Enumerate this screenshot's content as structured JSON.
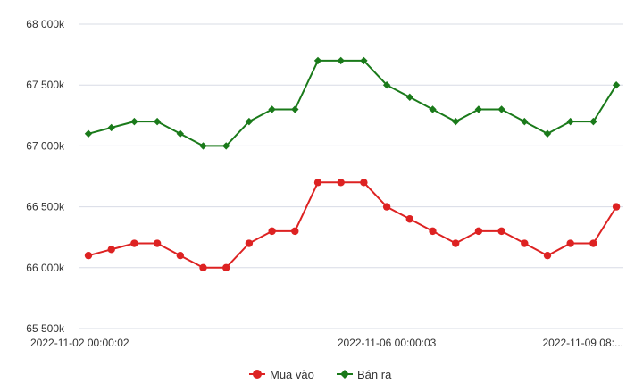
{
  "chart_data": {
    "type": "line",
    "ylim": [
      65500,
      68000
    ],
    "y_ticks": [
      {
        "value": 68000,
        "label": "68 000k"
      },
      {
        "value": 67500,
        "label": "67 500k"
      },
      {
        "value": 67000,
        "label": "67 000k"
      },
      {
        "value": 66500,
        "label": "66 500k"
      },
      {
        "value": 66000,
        "label": "66 000k"
      },
      {
        "value": 65500,
        "label": "65 500k"
      }
    ],
    "x_ticks": [
      {
        "index": 0,
        "label": "2022-11-02 00:00:02"
      },
      {
        "index": 13,
        "label": "2022-11-06 00:00:03"
      },
      {
        "index": 23,
        "label": "2022-11-09 08:..."
      }
    ],
    "grid": true,
    "legend_position": "bottom",
    "series": [
      {
        "name": "Mua vào",
        "color": "#dd2222",
        "marker": "circle",
        "values": [
          66100,
          66150,
          66200,
          66200,
          66100,
          66000,
          66000,
          66200,
          66300,
          66300,
          66700,
          66700,
          66700,
          66500,
          66400,
          66300,
          66200,
          66300,
          66300,
          66200,
          66100,
          66200,
          66200,
          66500
        ]
      },
      {
        "name": "Bán ra",
        "color": "#1a7a1a",
        "marker": "diamond",
        "values": [
          67100,
          67150,
          67200,
          67200,
          67100,
          67000,
          67000,
          67200,
          67300,
          67300,
          67700,
          67700,
          67700,
          67500,
          67400,
          67300,
          67200,
          67300,
          67300,
          67200,
          67100,
          67200,
          67200,
          67500
        ]
      }
    ]
  }
}
